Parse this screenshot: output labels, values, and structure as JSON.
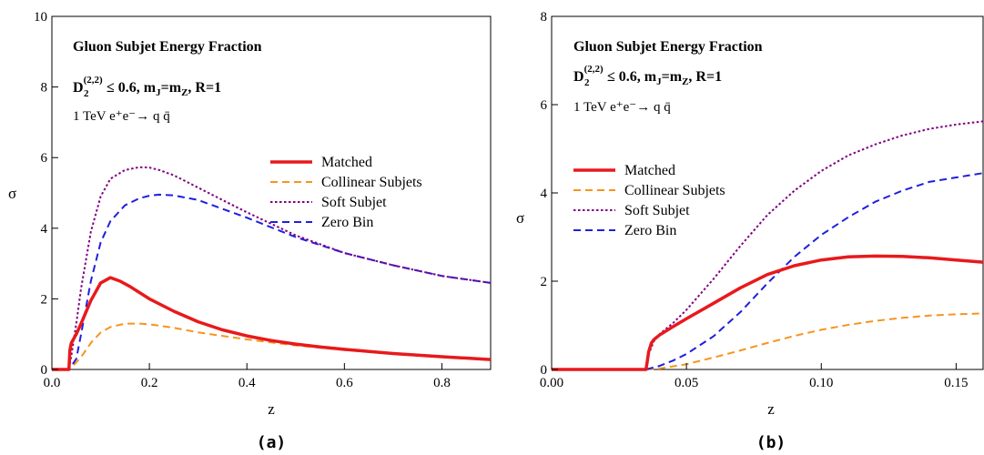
{
  "chart_data": [
    {
      "type": "line",
      "panel": "(a)",
      "title": "Gluon Subjet Energy Fraction",
      "subtitle_parts": {
        "d_main": "D",
        "d_sub": "2",
        "d_sup": "(2,2)",
        "cond": "≤ 0.6,  m",
        "mj_sub": "J",
        "eq": "=m",
        "mz_sub": "Z",
        "tail": ",  R=1"
      },
      "process": "1 TeV e⁺e⁻→ q q̄",
      "xlabel": "z",
      "ylabel": "σ",
      "xlim": [
        0,
        0.9
      ],
      "ylim": [
        0,
        10
      ],
      "xticks": [
        "0.0",
        "0.2",
        "0.4",
        "0.6",
        "0.8"
      ],
      "xtick_values": [
        0,
        0.2,
        0.4,
        0.6,
        0.8
      ],
      "yticks": [
        "0",
        "2",
        "4",
        "6",
        "8",
        "10"
      ],
      "ytick_values": [
        0,
        2,
        4,
        6,
        8,
        10
      ],
      "grid": false,
      "legend_position": "right",
      "series": [
        {
          "name": "Matched",
          "color": "#e8191c",
          "style": "solid",
          "x": [
            0,
            0.035,
            0.037,
            0.04,
            0.05,
            0.06,
            0.08,
            0.1,
            0.12,
            0.14,
            0.16,
            0.2,
            0.25,
            0.3,
            0.35,
            0.4,
            0.45,
            0.5,
            0.55,
            0.6,
            0.7,
            0.8,
            0.9
          ],
          "y": [
            0,
            0,
            0.55,
            0.75,
            1.0,
            1.3,
            1.95,
            2.45,
            2.6,
            2.5,
            2.35,
            2.0,
            1.65,
            1.35,
            1.12,
            0.95,
            0.82,
            0.72,
            0.64,
            0.57,
            0.45,
            0.36,
            0.28
          ]
        },
        {
          "name": "Collinear Subjets",
          "color": "#f7941d",
          "style": "dashed",
          "x": [
            0,
            0.035,
            0.04,
            0.06,
            0.08,
            0.1,
            0.12,
            0.15,
            0.18,
            0.2,
            0.25,
            0.3,
            0.35,
            0.4,
            0.5,
            0.6,
            0.7,
            0.8,
            0.9
          ],
          "y": [
            0,
            0,
            0.05,
            0.35,
            0.75,
            1.05,
            1.2,
            1.3,
            1.3,
            1.28,
            1.18,
            1.05,
            0.95,
            0.85,
            0.68,
            0.55,
            0.45,
            0.36,
            0.28
          ]
        },
        {
          "name": "Soft Subjet",
          "color": "#800080",
          "style": "dotted",
          "x": [
            0,
            0.035,
            0.04,
            0.05,
            0.06,
            0.08,
            0.1,
            0.12,
            0.15,
            0.18,
            0.2,
            0.22,
            0.25,
            0.3,
            0.35,
            0.4,
            0.5,
            0.6,
            0.7,
            0.8,
            0.9
          ],
          "y": [
            0,
            0,
            0.4,
            1.3,
            2.3,
            3.9,
            4.9,
            5.4,
            5.65,
            5.73,
            5.72,
            5.65,
            5.5,
            5.15,
            4.8,
            4.45,
            3.8,
            3.3,
            2.95,
            2.65,
            2.45
          ]
        },
        {
          "name": "Zero Bin",
          "color": "#1f1fe0",
          "style": "dashed",
          "x": [
            0,
            0.035,
            0.05,
            0.06,
            0.08,
            0.1,
            0.12,
            0.15,
            0.18,
            0.2,
            0.22,
            0.25,
            0.3,
            0.35,
            0.4,
            0.5,
            0.6,
            0.7,
            0.8,
            0.9
          ],
          "y": [
            0,
            0,
            0.3,
            1.0,
            2.5,
            3.6,
            4.2,
            4.65,
            4.85,
            4.92,
            4.95,
            4.93,
            4.8,
            4.55,
            4.3,
            3.75,
            3.3,
            2.95,
            2.65,
            2.45
          ]
        }
      ]
    },
    {
      "type": "line",
      "panel": "(b)",
      "title": "Gluon Subjet Energy Fraction",
      "subtitle_parts": {
        "d_main": "D",
        "d_sub": "2",
        "d_sup": "(2,2)",
        "cond": "≤ 0.6,  m",
        "mj_sub": "J",
        "eq": "=m",
        "mz_sub": "Z",
        "tail": ",  R=1"
      },
      "process": "1 TeV e⁺e⁻→ q q̄",
      "xlabel": "z",
      "ylabel": "σ",
      "xlim": [
        0,
        0.16
      ],
      "ylim": [
        0,
        8
      ],
      "xticks": [
        "0.00",
        "0.05",
        "0.10",
        "0.15"
      ],
      "xtick_values": [
        0,
        0.05,
        0.1,
        0.15
      ],
      "yticks": [
        "0",
        "2",
        "4",
        "6",
        "8"
      ],
      "ytick_values": [
        0,
        2,
        4,
        6,
        8
      ],
      "grid": false,
      "legend_position": "left",
      "series": [
        {
          "name": "Matched",
          "color": "#e8191c",
          "style": "solid",
          "x": [
            0,
            0.035,
            0.0355,
            0.036,
            0.037,
            0.038,
            0.04,
            0.045,
            0.05,
            0.06,
            0.07,
            0.08,
            0.09,
            0.1,
            0.11,
            0.12,
            0.13,
            0.14,
            0.15,
            0.16
          ],
          "y": [
            0,
            0,
            0.2,
            0.4,
            0.6,
            0.68,
            0.78,
            0.97,
            1.15,
            1.5,
            1.85,
            2.15,
            2.35,
            2.48,
            2.55,
            2.57,
            2.56,
            2.53,
            2.48,
            2.43
          ]
        },
        {
          "name": "Collinear Subjets",
          "color": "#f7941d",
          "style": "dashed",
          "x": [
            0,
            0.035,
            0.04,
            0.05,
            0.06,
            0.07,
            0.08,
            0.09,
            0.1,
            0.11,
            0.12,
            0.13,
            0.14,
            0.15,
            0.16
          ],
          "y": [
            0,
            0,
            0.02,
            0.12,
            0.27,
            0.43,
            0.6,
            0.76,
            0.9,
            1.01,
            1.1,
            1.17,
            1.22,
            1.25,
            1.27
          ]
        },
        {
          "name": "Soft Subjet",
          "color": "#800080",
          "style": "dotted",
          "x": [
            0,
            0.035,
            0.036,
            0.038,
            0.04,
            0.045,
            0.05,
            0.06,
            0.07,
            0.08,
            0.09,
            0.1,
            0.11,
            0.12,
            0.13,
            0.14,
            0.15,
            0.16
          ],
          "y": [
            0,
            0,
            0.35,
            0.65,
            0.8,
            1.05,
            1.35,
            2.05,
            2.8,
            3.5,
            4.05,
            4.5,
            4.85,
            5.1,
            5.3,
            5.45,
            5.55,
            5.62
          ]
        },
        {
          "name": "Zero Bin",
          "color": "#1f1fe0",
          "style": "dashed",
          "x": [
            0,
            0.035,
            0.04,
            0.045,
            0.05,
            0.06,
            0.07,
            0.08,
            0.09,
            0.1,
            0.11,
            0.12,
            0.13,
            0.14,
            0.15,
            0.16
          ],
          "y": [
            0,
            0,
            0.08,
            0.2,
            0.35,
            0.75,
            1.3,
            1.95,
            2.55,
            3.05,
            3.45,
            3.8,
            4.05,
            4.25,
            4.35,
            4.45
          ]
        }
      ]
    }
  ],
  "captions": [
    "(a)",
    "(b)"
  ]
}
